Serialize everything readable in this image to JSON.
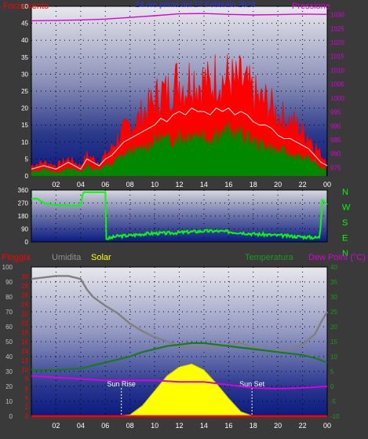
{
  "colors": {
    "background": "#3a3a3a",
    "wind": "#ff0000",
    "wind_gust": "#ff1a1a",
    "wind_avg": "#00aa00",
    "wind_light": "#ffdddd",
    "pressure": "#dd00dd",
    "direction": "#00ff00",
    "humidity": "#808080",
    "temperature": "#1a7a1a",
    "dewpoint": "#dd00dd",
    "solar": "#ffff00",
    "rain": "#ff0000",
    "axis_text": "#ffffff",
    "grid": "#000000"
  },
  "chart_data": [
    {
      "type": "line",
      "panel": "wind-pressure",
      "title": "24 ore prima del 17 Febbraio 2024",
      "left_label": "Forza vento",
      "right_label": "Pressione",
      "x_ticks": [
        "02",
        "04",
        "06",
        "08",
        "10",
        "12",
        "14",
        "16",
        "18",
        "20",
        "22",
        "00"
      ],
      "left_ticks": [
        0,
        5,
        10,
        15,
        20,
        25,
        30,
        35,
        40,
        45,
        50
      ],
      "right_ticks": [
        975,
        980,
        985,
        990,
        995,
        1000,
        1005,
        1010,
        1015,
        1020,
        1025,
        1030
      ],
      "left_range": [
        0,
        50
      ],
      "right_range": [
        972,
        1033
      ],
      "x_range": [
        0,
        24
      ],
      "series": [
        {
          "role": "gust",
          "x": [
            0,
            1,
            2,
            3,
            3.5,
            4,
            4.5,
            5,
            5.5,
            6,
            6.5,
            7,
            7.5,
            8,
            8.5,
            9,
            9.5,
            10,
            10.5,
            11,
            11.5,
            12,
            12.5,
            13,
            13.5,
            14,
            14.5,
            15,
            15.5,
            16,
            16.5,
            17,
            17.5,
            18,
            18.5,
            19,
            19.5,
            20,
            20.5,
            21,
            21.5,
            22,
            22.5,
            23,
            23.5,
            24
          ],
          "values": [
            3,
            4,
            3,
            5,
            4,
            3,
            6,
            5,
            4,
            6,
            8,
            11,
            13,
            15,
            16,
            18,
            20,
            22,
            25,
            24,
            27,
            28,
            26,
            30,
            27,
            28,
            26,
            30,
            28,
            29,
            27,
            28,
            26,
            24,
            22,
            22,
            20,
            18,
            17,
            16,
            15,
            13,
            12,
            9,
            6,
            5
          ]
        },
        {
          "role": "max",
          "x": [
            0,
            1,
            2,
            3,
            3.5,
            4,
            4.5,
            5,
            5.5,
            6,
            6.5,
            7,
            7.5,
            8,
            8.5,
            9,
            9.5,
            10,
            10.5,
            11,
            11.5,
            12,
            12.5,
            13,
            13.5,
            14,
            14.5,
            15,
            15.5,
            16,
            16.5,
            17,
            17.5,
            18,
            18.5,
            19,
            19.5,
            20,
            20.5,
            21,
            21.5,
            22,
            22.5,
            23,
            23.5,
            24
          ],
          "values": [
            2,
            3,
            2,
            4,
            3,
            2,
            5,
            4,
            3,
            5,
            6,
            8,
            10,
            11,
            12,
            13,
            14,
            15,
            17,
            16,
            18,
            19,
            18,
            20,
            19,
            19,
            18,
            20,
            19,
            20,
            18,
            19,
            18,
            16,
            15,
            15,
            14,
            12,
            11,
            11,
            10,
            9,
            8,
            6,
            4,
            3
          ]
        },
        {
          "role": "average",
          "x": [
            0,
            1,
            2,
            3,
            3.5,
            4,
            4.5,
            5,
            5.5,
            6,
            6.5,
            7,
            7.5,
            8,
            8.5,
            9,
            9.5,
            10,
            10.5,
            11,
            11.5,
            12,
            12.5,
            13,
            13.5,
            14,
            14.5,
            15,
            15.5,
            16,
            16.5,
            17,
            17.5,
            18,
            18.5,
            19,
            19.5,
            20,
            20.5,
            21,
            21.5,
            22,
            22.5,
            23,
            23.5,
            24
          ],
          "values": [
            1,
            2,
            1,
            2,
            2,
            1,
            3,
            2,
            2,
            3,
            3,
            5,
            6,
            7,
            7,
            8,
            9,
            10,
            11,
            10,
            11,
            12,
            11,
            13,
            12,
            12,
            11,
            13,
            12,
            13,
            12,
            12,
            11,
            10,
            9,
            9,
            8,
            7,
            7,
            6,
            6,
            5,
            5,
            4,
            2,
            2
          ]
        },
        {
          "role": "pressure",
          "x": [
            0,
            2,
            4,
            6,
            8,
            10,
            12,
            14,
            16,
            18,
            20,
            22,
            24
          ],
          "values": [
            1027.8,
            1027.9,
            1028.1,
            1028.4,
            1029.0,
            1029.6,
            1030.3,
            1030.4,
            1030.1,
            1029.9,
            1030.0,
            1030.2,
            1030.1
          ]
        }
      ]
    },
    {
      "type": "line",
      "panel": "direction",
      "left_ticks": [
        0,
        90,
        180,
        270,
        360
      ],
      "right_ticks": [
        "N",
        "W",
        "S",
        "E",
        "N"
      ],
      "y_range": [
        0,
        360
      ],
      "x_range": [
        0,
        24
      ],
      "series": [
        {
          "role": "direction",
          "x": [
            0,
            0.5,
            1,
            2,
            3,
            3.5,
            4,
            4.2,
            5,
            6,
            6.05,
            7,
            8,
            9,
            10,
            11,
            12,
            13,
            14,
            15,
            16,
            17,
            18,
            19,
            20,
            21,
            22,
            23,
            23.4,
            23.6,
            24
          ],
          "values": [
            300,
            300,
            270,
            255,
            255,
            250,
            255,
            345,
            345,
            345,
            20,
            40,
            45,
            55,
            60,
            60,
            65,
            70,
            75,
            75,
            70,
            65,
            55,
            50,
            45,
            40,
            35,
            30,
            30,
            290,
            260
          ]
        }
      ]
    },
    {
      "type": "line",
      "panel": "climate",
      "labels": {
        "rain": "Pioggia",
        "humidity": "Umidita",
        "solar": "Solar",
        "temperature": "Temperatura",
        "dewpoint": "Dew Point (°C)"
      },
      "humidity_ticks": [
        0,
        10,
        20,
        30,
        40,
        50,
        60,
        70,
        80,
        90,
        100
      ],
      "rain_ticks": [
        0,
        2,
        4,
        6,
        8,
        10,
        12,
        14,
        16,
        18,
        20,
        22,
        24,
        26,
        28,
        30
      ],
      "temp_ticks": [
        -10,
        -5,
        0,
        5,
        10,
        15,
        20,
        25,
        30,
        35,
        40
      ],
      "temp_range": [
        -10,
        40
      ],
      "humidity_range": [
        0,
        100
      ],
      "x_ticks": [
        "02",
        "04",
        "06",
        "08",
        "10",
        "12",
        "14",
        "16",
        "18",
        "20",
        "22",
        "00"
      ],
      "x_range": [
        0,
        24
      ],
      "annotations": [
        {
          "text": "Sun Rise",
          "x": 7.3
        },
        {
          "text": "Sun Set",
          "x": 17.9
        }
      ],
      "series": [
        {
          "role": "humidity",
          "x": [
            0,
            1,
            2,
            3,
            4,
            4.5,
            5,
            5.5,
            6,
            7,
            8,
            9,
            10,
            11,
            12,
            13,
            14,
            15,
            16,
            17,
            18,
            19,
            20,
            21,
            22,
            23,
            23.5,
            24
          ],
          "values": [
            92,
            93,
            94,
            94,
            92,
            85,
            80,
            77,
            74,
            69,
            62,
            57,
            53,
            50,
            47,
            46,
            46,
            46,
            48,
            49,
            46,
            44,
            44,
            45,
            48,
            55,
            63,
            70
          ]
        },
        {
          "role": "temperature",
          "x": [
            0,
            2,
            4,
            5,
            6,
            7,
            8,
            9,
            10,
            11,
            12,
            13,
            14,
            15,
            16,
            17,
            18,
            19,
            20,
            21,
            22,
            23,
            24
          ],
          "values": [
            5.5,
            5.5,
            6,
            7,
            8,
            9,
            10,
            11.5,
            12.5,
            13.5,
            14,
            14.5,
            14.5,
            14,
            13.5,
            13,
            12.5,
            12,
            11.5,
            11,
            10.5,
            9.5,
            8
          ]
        },
        {
          "role": "dewpoint",
          "x": [
            0,
            2,
            4,
            6,
            8,
            10,
            12,
            14,
            16,
            18,
            20,
            22,
            24
          ],
          "values": [
            3.5,
            3,
            2.5,
            2,
            2,
            2,
            1.5,
            1.5,
            0.5,
            -0.5,
            -0.8,
            -0.5,
            0
          ]
        },
        {
          "role": "solar",
          "x": [
            7,
            8,
            9,
            10,
            11,
            12,
            13,
            14,
            15,
            16,
            17,
            18
          ],
          "values": [
            0,
            1,
            7,
            17,
            27,
            33,
            35,
            31,
            22,
            12,
            3,
            0
          ]
        },
        {
          "role": "rain",
          "x": [
            0,
            24
          ],
          "values": [
            0,
            0
          ]
        }
      ]
    }
  ]
}
